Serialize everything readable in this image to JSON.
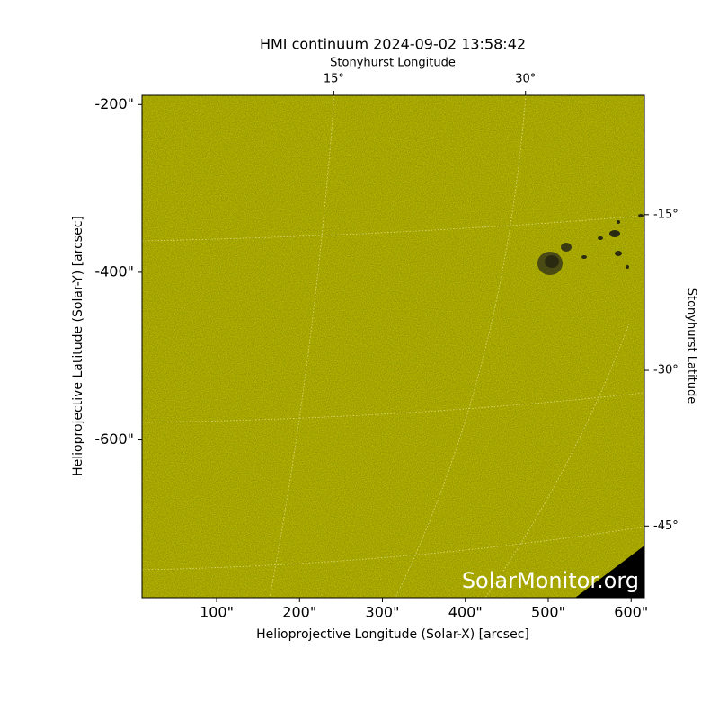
{
  "chart_data": {
    "type": "image",
    "title": "HMI continuum 2024-09-02 13:58:42",
    "x_label": "Helioprojective Longitude (Solar-X) [arcsec]",
    "y_label": "Helioprojective Latitude (Solar-Y) [arcsec]",
    "x2_label": "Stonyhurst Longitude",
    "y2_label": "Stonyhurst Latitude",
    "watermark": "SolarMonitor.org",
    "color": "#c9c900",
    "xlim": [
      10,
      616
    ],
    "ylim": [
      -788,
      -189
    ],
    "xticks": [
      {
        "value": 100,
        "label": "100\""
      },
      {
        "value": 200,
        "label": "200\""
      },
      {
        "value": 300,
        "label": "300\""
      },
      {
        "value": 400,
        "label": "400\""
      },
      {
        "value": 500,
        "label": "500\""
      },
      {
        "value": 600,
        "label": "600\""
      }
    ],
    "yticks": [
      {
        "value": -200,
        "label": "-200\""
      },
      {
        "value": -400,
        "label": "-400\""
      },
      {
        "value": -600,
        "label": "-600\""
      }
    ],
    "x2lim": [
      0,
      39.3
    ],
    "x2ticks": [
      {
        "value": 15,
        "label": "15°"
      },
      {
        "value": 30,
        "label": "30°"
      }
    ],
    "y2lim": [
      -51.9,
      -3.5
    ],
    "y2ticks": [
      {
        "value": -15,
        "label": "-15°"
      },
      {
        "value": -30,
        "label": "-30°"
      },
      {
        "value": -45,
        "label": "-45°"
      }
    ]
  }
}
